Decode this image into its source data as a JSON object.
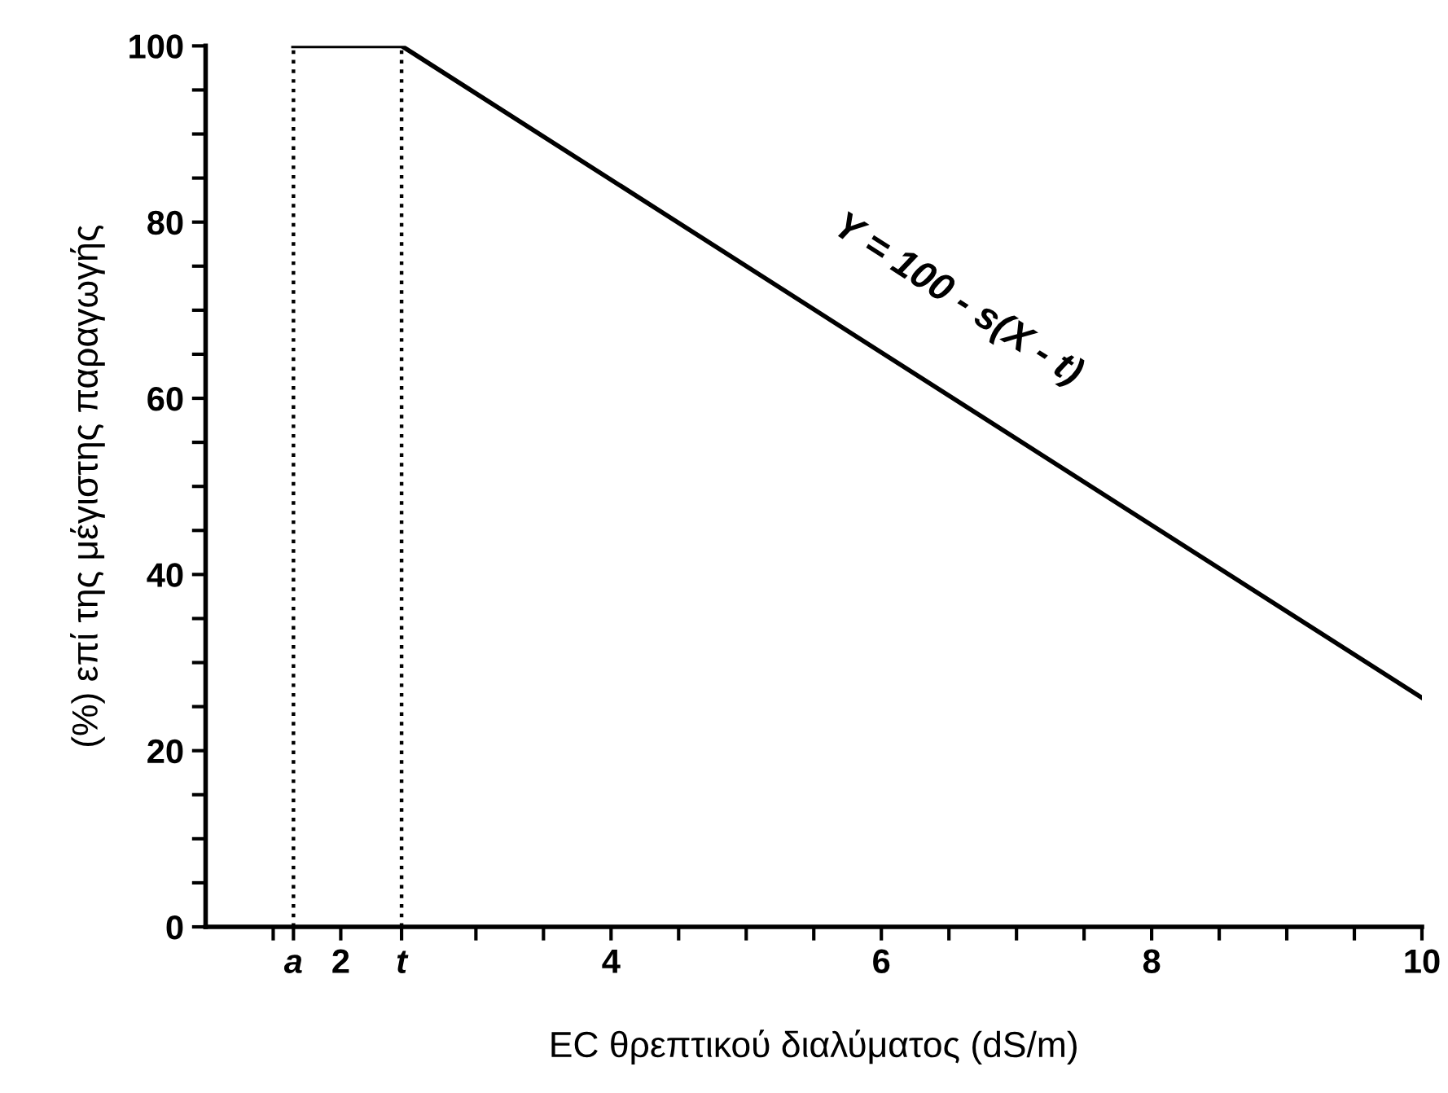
{
  "chart_data": {
    "type": "line",
    "xlabel": "EC θρεπτικού διαλύματος (dS/m)",
    "ylabel": "(%) επί της μέγιστης παραγωγής",
    "x": [
      1.65,
      2.45,
      10
    ],
    "series": [
      {
        "color": "#000000",
        "values": [
          100,
          100,
          26
        ]
      }
    ],
    "xlim": [
      1,
      10
    ],
    "ylim": [
      0,
      100
    ],
    "xticks": [
      {
        "value": 1.5,
        "label": null
      },
      {
        "value": 1.65,
        "label": "a"
      },
      2,
      {
        "value": 2.45,
        "label": "t"
      },
      {
        "value": 3,
        "label": null
      },
      {
        "value": 3.5,
        "label": null
      },
      4,
      {
        "value": 4.5,
        "label": null
      },
      {
        "value": 5,
        "label": null
      },
      {
        "value": 5.5,
        "label": null
      },
      6,
      {
        "value": 6.5,
        "label": null
      },
      {
        "value": 7,
        "label": null
      },
      {
        "value": 7.5,
        "label": null
      },
      8,
      {
        "value": 8.5,
        "label": null
      },
      {
        "value": 9,
        "label": null
      },
      {
        "value": 9.5,
        "label": null
      },
      10
    ],
    "yticks": [
      0,
      {
        "value": 5,
        "label": null
      },
      {
        "value": 10,
        "label": null
      },
      {
        "value": 15,
        "label": null
      },
      20,
      {
        "value": 25,
        "label": null
      },
      {
        "value": 30,
        "label": null
      },
      {
        "value": 35,
        "label": null
      },
      40,
      {
        "value": 45,
        "label": null
      },
      {
        "value": 50,
        "label": null
      },
      {
        "value": 55,
        "label": null
      },
      60,
      {
        "value": 65,
        "label": null
      },
      {
        "value": 70,
        "label": null
      },
      {
        "value": 75,
        "label": null
      },
      80,
      {
        "value": 85,
        "label": null
      },
      {
        "value": 90,
        "label": null
      },
      {
        "value": 95,
        "label": null
      },
      100
    ],
    "ref_lines": [
      {
        "axis": "x",
        "value": 1.65,
        "line_style": "dotted",
        "color": "#000000"
      },
      {
        "axis": "x",
        "value": 2.45,
        "line_style": "dotted",
        "color": "#000000"
      }
    ],
    "annotations": [
      "Y = 100 - s(X - t)"
    ],
    "grid": false,
    "legend": false,
    "marker": "none",
    "line_style": "solid"
  }
}
